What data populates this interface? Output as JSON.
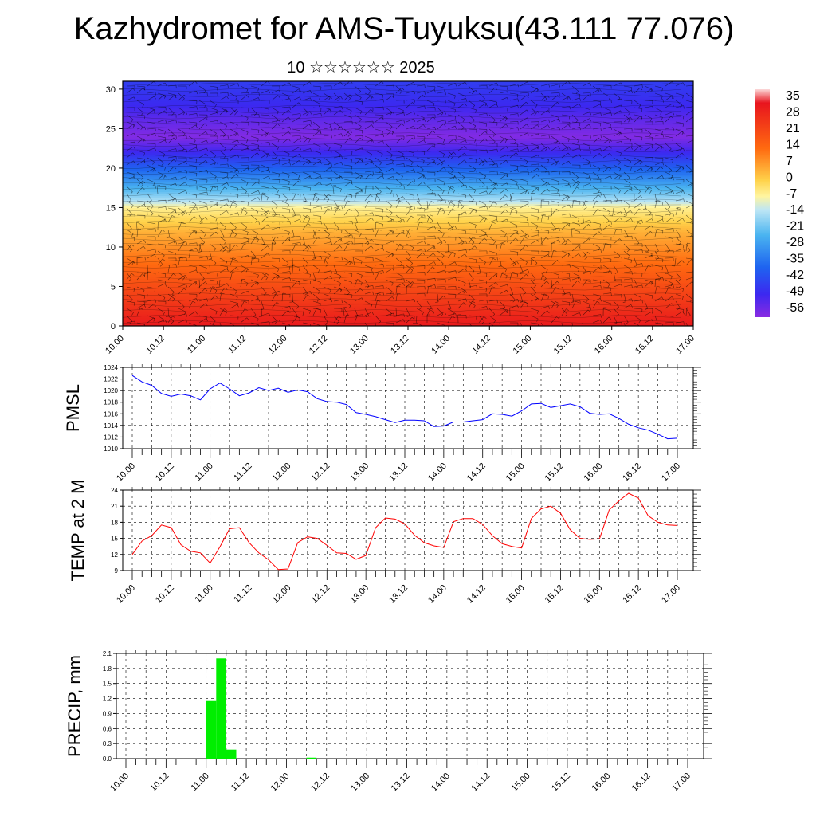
{
  "title": "Kazhydromet for AMS-Tuyuksu(43.111 77.076)",
  "subtitle": "10 ☆☆☆☆☆☆ 2025",
  "chart_data": [
    {
      "type": "heatmap",
      "title": "",
      "ylim": [
        0,
        31
      ],
      "y_ticks": [
        "0",
        "5",
        "10",
        "15",
        "20",
        "25",
        "30"
      ],
      "x_ticks": [
        "10.00",
        "10.12",
        "11.00",
        "11.12",
        "12.00",
        "12.12",
        "13.00",
        "13.12",
        "14.00",
        "14.12",
        "15.00",
        "15.12",
        "16.00",
        "16.12",
        "17.00"
      ],
      "colorbar_labels": [
        "35",
        "28",
        "21",
        "14",
        "7",
        "0",
        "-7",
        "-14",
        "-21",
        "-28",
        "-35",
        "-42",
        "-49",
        "-56"
      ],
      "colorbar_range": [
        -60,
        38
      ],
      "layers": [
        {
          "level": 0,
          "value": 31
        },
        {
          "level": 3,
          "value": 24
        },
        {
          "level": 6,
          "value": 17
        },
        {
          "level": 9,
          "value": 10
        },
        {
          "level": 12,
          "value": 3
        },
        {
          "level": 15,
          "value": -7
        },
        {
          "level": 16,
          "value": -16
        },
        {
          "level": 18,
          "value": -28
        },
        {
          "level": 20,
          "value": -39
        },
        {
          "level": 22,
          "value": -50
        },
        {
          "level": 24,
          "value": -59
        },
        {
          "level": 26,
          "value": -55
        },
        {
          "level": 28,
          "value": -50
        },
        {
          "level": 31,
          "value": -46
        }
      ],
      "wind_barbs": true,
      "colors": [
        "#8a2be2",
        "#3c28f0",
        "#1e64f0",
        "#4ab4f0",
        "#bde6f5",
        "#fff5a0",
        "#ffd24a",
        "#ffa020",
        "#ff6a10",
        "#ff2a00",
        "#e0141e"
      ]
    },
    {
      "type": "line",
      "ylabel": "PMSL",
      "ylim": [
        1010,
        1024
      ],
      "y_ticks": [
        "1010",
        "1012",
        "1014",
        "1016",
        "1018",
        "1020",
        "1022",
        "1024"
      ],
      "x_ticks": [
        "10.00",
        "10.12",
        "11.00",
        "11.12",
        "12.00",
        "12.12",
        "13.00",
        "13.12",
        "14.00",
        "14.12",
        "15.00",
        "15.12",
        "16.00",
        "16.12",
        "17.00"
      ],
      "x": [
        0,
        3,
        6,
        9,
        12,
        15,
        18,
        21,
        24,
        27,
        30,
        33,
        36,
        39,
        42,
        45,
        48,
        51,
        54,
        57,
        60,
        63,
        66,
        69,
        72,
        75,
        78,
        81,
        84,
        87,
        90,
        93,
        96,
        99,
        102,
        105,
        108,
        111,
        114,
        117,
        120,
        123,
        126,
        129,
        132,
        135,
        138,
        141,
        144,
        147,
        150,
        153,
        156,
        159,
        162,
        165,
        168
      ],
      "series": [
        {
          "color": "#0000ff",
          "values": [
            1022.6,
            1021.5,
            1020.9,
            1019.5,
            1019.0,
            1019.4,
            1019.1,
            1018.4,
            1020.3,
            1021.3,
            1020.3,
            1019.1,
            1019.6,
            1020.5,
            1020.0,
            1020.4,
            1019.7,
            1020.1,
            1019.8,
            1018.6,
            1018.1,
            1018.0,
            1017.6,
            1016.2,
            1015.9,
            1015.5,
            1015.0,
            1014.5,
            1014.9,
            1014.9,
            1014.8,
            1013.8,
            1013.9,
            1014.6,
            1014.6,
            1014.8,
            1015.0,
            1016.0,
            1015.9,
            1015.6,
            1016.5,
            1017.7,
            1017.8,
            1017.1,
            1017.4,
            1017.7,
            1017.2,
            1016.1,
            1015.9,
            1016.0,
            1015.2,
            1014.2,
            1013.6,
            1013.2,
            1012.5,
            1011.7,
            1011.8
          ]
        }
      ]
    },
    {
      "type": "line",
      "ylabel": "TEMP at 2 M",
      "ylim": [
        9,
        24
      ],
      "y_ticks": [
        "9",
        "12",
        "15",
        "18",
        "21",
        "24"
      ],
      "x_ticks": [
        "10.00",
        "10.12",
        "11.00",
        "11.12",
        "12.00",
        "12.12",
        "13.00",
        "13.12",
        "14.00",
        "14.12",
        "15.00",
        "15.12",
        "16.00",
        "16.12",
        "17.00"
      ],
      "x": [
        0,
        3,
        6,
        9,
        12,
        15,
        18,
        21,
        24,
        27,
        30,
        33,
        36,
        39,
        42,
        45,
        48,
        51,
        54,
        57,
        60,
        63,
        66,
        69,
        72,
        75,
        78,
        81,
        84,
        87,
        90,
        93,
        96,
        99,
        102,
        105,
        108,
        111,
        114,
        117,
        120,
        123,
        126,
        129,
        132,
        135,
        138,
        141,
        144,
        147,
        150,
        153,
        156,
        159,
        162,
        165,
        168
      ],
      "series": [
        {
          "color": "#ff0000",
          "values": [
            12.0,
            14.5,
            15.5,
            17.5,
            17.0,
            13.8,
            12.6,
            12.3,
            10.4,
            13.4,
            16.8,
            17.0,
            14.2,
            12.3,
            11.0,
            9.2,
            9.3,
            14.2,
            15.3,
            15.0,
            13.7,
            12.3,
            12.2,
            11.1,
            11.8,
            17.0,
            18.8,
            18.6,
            17.7,
            15.6,
            14.2,
            13.6,
            13.3,
            18.1,
            18.7,
            18.7,
            17.6,
            15.5,
            14.0,
            13.5,
            13.2,
            18.7,
            20.5,
            21.0,
            19.7,
            16.6,
            15.0,
            14.8,
            14.9,
            20.3,
            22.0,
            23.4,
            22.5,
            19.2,
            18.0,
            17.5,
            17.4
          ]
        }
      ]
    },
    {
      "type": "bar",
      "ylabel": "PRECIP, mm",
      "ylim": [
        0,
        2.1
      ],
      "y_ticks": [
        "0.0",
        "0.3",
        "0.6",
        "0.9",
        "1.2",
        "1.5",
        "1.8",
        "2.1"
      ],
      "x_ticks": [
        "10.00",
        "10.12",
        "11.00",
        "11.12",
        "12.00",
        "12.12",
        "13.00",
        "13.12",
        "14.00",
        "14.12",
        "15.00",
        "15.12",
        "16.00",
        "16.12",
        "17.00"
      ],
      "x": [
        24,
        27,
        30,
        54
      ],
      "values": [
        1.15,
        2.0,
        0.18,
        0.02
      ],
      "bar_color": "#00ee00"
    }
  ]
}
